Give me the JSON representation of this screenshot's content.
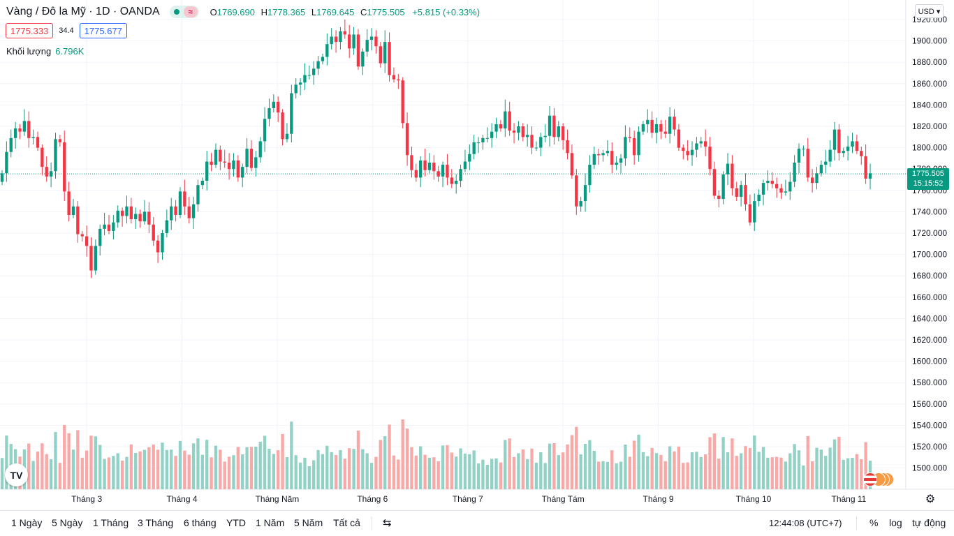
{
  "header": {
    "symbol_title": "Vàng / Đô la Mỹ · 1D · OANDA",
    "wave_glyph": "≈",
    "ohlc": {
      "o_label": "O",
      "o_value": "1769.690",
      "h_label": "H",
      "h_value": "1778.365",
      "l_label": "L",
      "l_value": "1769.645",
      "c_label": "C",
      "c_value": "1775.505",
      "change": "+5.815 (+0.33%)"
    },
    "bid": "1775.333",
    "spread": "34.4",
    "ask": "1775.677",
    "volume_label": "Khối lượng",
    "volume_value": "6.796K"
  },
  "currency": "USD",
  "last_price": {
    "price": "1775.505",
    "countdown": "15:15:52"
  },
  "logo_text": "TV",
  "colors": {
    "up": "#089981",
    "down": "#f23645",
    "vol_up": "#92d2c6",
    "vol_down": "#f7a9a7",
    "grid": "#f0f3fa",
    "last_line": "#089981"
  },
  "chart_data": {
    "type": "candlestick",
    "title": "Vàng / Đô la Mỹ · 1D · OANDA",
    "ylim": [
      1480,
      1920
    ],
    "y_ticks": [
      "1920.000",
      "1900.000",
      "1880.000",
      "1860.000",
      "1840.000",
      "1820.000",
      "1800.000",
      "1780.000",
      "1760.000",
      "1740.000",
      "1720.000",
      "1700.000",
      "1680.000",
      "1660.000",
      "1640.000",
      "1620.000",
      "1600.000",
      "1580.000",
      "1560.000",
      "1540.000",
      "1520.000",
      "1500.000"
    ],
    "x_ticks": [
      "Tháng 3",
      "Tháng 4",
      "Tháng Năm",
      "Tháng 6",
      "Tháng 7",
      "Tháng Tám",
      "Tháng 9",
      "Tháng 10",
      "Tháng 11"
    ],
    "last_price": 1775.505,
    "close": [
      1776,
      1796,
      1809,
      1818,
      1815,
      1825,
      1809,
      1810,
      1800,
      1782,
      1773,
      1778,
      1808,
      1805,
      1759,
      1737,
      1745,
      1719,
      1717,
      1708,
      1685,
      1708,
      1724,
      1728,
      1722,
      1730,
      1741,
      1736,
      1745,
      1733,
      1738,
      1731,
      1740,
      1728,
      1713,
      1702,
      1720,
      1732,
      1745,
      1737,
      1759,
      1745,
      1734,
      1747,
      1765,
      1769,
      1787,
      1784,
      1798,
      1787,
      1786,
      1780,
      1788,
      1772,
      1782,
      1799,
      1781,
      1791,
      1806,
      1827,
      1837,
      1843,
      1833,
      1808,
      1813,
      1851,
      1859,
      1861,
      1868,
      1868,
      1874,
      1881,
      1885,
      1897,
      1904,
      1899,
      1909,
      1906,
      1893,
      1906,
      1876,
      1890,
      1901,
      1904,
      1895,
      1879,
      1899,
      1868,
      1864,
      1863,
      1823,
      1793,
      1779,
      1772,
      1788,
      1779,
      1786,
      1778,
      1773,
      1784,
      1772,
      1766,
      1769,
      1780,
      1787,
      1794,
      1805,
      1805,
      1809,
      1809,
      1815,
      1822,
      1818,
      1834,
      1816,
      1814,
      1820,
      1810,
      1812,
      1800,
      1800,
      1810,
      1811,
      1830,
      1810,
      1820,
      1807,
      1795,
      1774,
      1745,
      1750,
      1765,
      1784,
      1794,
      1793,
      1795,
      1797,
      1784,
      1786,
      1790,
      1810,
      1809,
      1793,
      1815,
      1822,
      1826,
      1814,
      1822,
      1815,
      1813,
      1829,
      1817,
      1800,
      1797,
      1793,
      1798,
      1804,
      1806,
      1801,
      1780,
      1755,
      1752,
      1775,
      1785,
      1762,
      1754,
      1765,
      1747,
      1730,
      1750,
      1756,
      1767,
      1769,
      1766,
      1762,
      1758,
      1759,
      1768,
      1786,
      1799,
      1799,
      1772,
      1767,
      1776,
      1784,
      1787,
      1798,
      1817,
      1795,
      1797,
      1801,
      1806,
      1797,
      1792,
      1771,
      1776
    ]
  },
  "bottom": {
    "timeframes": [
      "1 Ngày",
      "5 Ngày",
      "1 Tháng",
      "3 Tháng",
      "6 tháng",
      "YTD",
      "1 Năm",
      "5 Năm",
      "Tất cả"
    ],
    "clock": "12:44:08 (UTC+7)",
    "options": [
      "%",
      "log",
      "tự động"
    ]
  }
}
